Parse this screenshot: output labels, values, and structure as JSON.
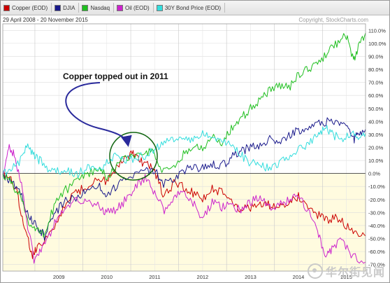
{
  "chart_data": {
    "type": "line",
    "date_range": "29 April 2008 - 20 November 2015",
    "copyright": "Copyright, StockCharts.com",
    "annotation": "Copper topped out in 2011",
    "x_tick_labels": [
      "2009",
      "2010",
      "2011",
      "2012",
      "2013",
      "2014",
      "2015"
    ],
    "y_tick_labels": [
      "110.0%",
      "100.0%",
      "90.0%",
      "80.0%",
      "70.0%",
      "60.0%",
      "50.0%",
      "40.0%",
      "30.0%",
      "20.0%",
      "10.0%",
      "0.0%",
      "-10.0%",
      "-20.0%",
      "-30.0%",
      "-40.0%",
      "-50.0%",
      "-60.0%",
      "-70.0%"
    ],
    "y_axis_range": [
      -75,
      115
    ],
    "x_axis_range": [
      2008.33,
      2015.9
    ],
    "grid": true,
    "legend_position": "top",
    "series": [
      {
        "name": "Copper (EOD)",
        "color": "#cc0000",
        "points": [
          [
            2008.33,
            0
          ],
          [
            2008.5,
            -4
          ],
          [
            2008.65,
            -18
          ],
          [
            2008.8,
            -45
          ],
          [
            2008.95,
            -62
          ],
          [
            2009.05,
            -58
          ],
          [
            2009.3,
            -48
          ],
          [
            2009.55,
            -30
          ],
          [
            2009.8,
            -15
          ],
          [
            2010.0,
            -12
          ],
          [
            2010.3,
            -5
          ],
          [
            2010.5,
            -6
          ],
          [
            2010.7,
            4
          ],
          [
            2010.9,
            12
          ],
          [
            2011.05,
            16
          ],
          [
            2011.2,
            10
          ],
          [
            2011.35,
            6
          ],
          [
            2011.5,
            2
          ],
          [
            2011.7,
            -18
          ],
          [
            2011.9,
            -8
          ],
          [
            2012.1,
            -10
          ],
          [
            2012.3,
            -15
          ],
          [
            2012.5,
            -20
          ],
          [
            2012.7,
            -12
          ],
          [
            2012.9,
            -14
          ],
          [
            2013.1,
            -20
          ],
          [
            2013.3,
            -28
          ],
          [
            2013.5,
            -26
          ],
          [
            2013.7,
            -22
          ],
          [
            2013.9,
            -24
          ],
          [
            2014.1,
            -26
          ],
          [
            2014.3,
            -22
          ],
          [
            2014.5,
            -18
          ],
          [
            2014.7,
            -24
          ],
          [
            2014.9,
            -32
          ],
          [
            2015.1,
            -36
          ],
          [
            2015.3,
            -34
          ],
          [
            2015.5,
            -40
          ],
          [
            2015.7,
            -44
          ],
          [
            2015.9,
            -48
          ]
        ]
      },
      {
        "name": "DJIA",
        "color": "#1a1a8c",
        "points": [
          [
            2008.33,
            0
          ],
          [
            2008.5,
            -6
          ],
          [
            2008.7,
            -15
          ],
          [
            2008.9,
            -35
          ],
          [
            2009.05,
            -40
          ],
          [
            2009.2,
            -48
          ],
          [
            2009.4,
            -32
          ],
          [
            2009.6,
            -22
          ],
          [
            2009.9,
            -18
          ],
          [
            2010.1,
            -13
          ],
          [
            2010.35,
            -10
          ],
          [
            2010.5,
            -16
          ],
          [
            2010.75,
            -8
          ],
          [
            2011.0,
            -2
          ],
          [
            2011.3,
            2
          ],
          [
            2011.5,
            3
          ],
          [
            2011.65,
            -8
          ],
          [
            2011.9,
            -3
          ],
          [
            2012.1,
            2
          ],
          [
            2012.3,
            5
          ],
          [
            2012.5,
            4
          ],
          [
            2012.7,
            8
          ],
          [
            2012.9,
            6
          ],
          [
            2013.1,
            12
          ],
          [
            2013.3,
            17
          ],
          [
            2013.5,
            20
          ],
          [
            2013.7,
            22
          ],
          [
            2013.9,
            27
          ],
          [
            2014.1,
            25
          ],
          [
            2014.3,
            29
          ],
          [
            2014.5,
            33
          ],
          [
            2014.7,
            34
          ],
          [
            2014.9,
            38
          ],
          [
            2015.1,
            40
          ],
          [
            2015.3,
            39
          ],
          [
            2015.5,
            38
          ],
          [
            2015.65,
            26
          ],
          [
            2015.75,
            30
          ],
          [
            2015.9,
            34
          ]
        ]
      },
      {
        "name": "Nasdaq",
        "color": "#1fbf1f",
        "points": [
          [
            2008.33,
            0
          ],
          [
            2008.5,
            -6
          ],
          [
            2008.7,
            -18
          ],
          [
            2008.9,
            -40
          ],
          [
            2009.05,
            -43
          ],
          [
            2009.2,
            -46
          ],
          [
            2009.4,
            -25
          ],
          [
            2009.6,
            -14
          ],
          [
            2009.9,
            -5
          ],
          [
            2010.1,
            0
          ],
          [
            2010.35,
            5
          ],
          [
            2010.5,
            -4
          ],
          [
            2010.75,
            8
          ],
          [
            2011.0,
            14
          ],
          [
            2011.3,
            18
          ],
          [
            2011.5,
            15
          ],
          [
            2011.65,
            0
          ],
          [
            2011.9,
            6
          ],
          [
            2012.1,
            15
          ],
          [
            2012.3,
            22
          ],
          [
            2012.5,
            20
          ],
          [
            2012.7,
            28
          ],
          [
            2012.9,
            24
          ],
          [
            2013.1,
            34
          ],
          [
            2013.3,
            42
          ],
          [
            2013.5,
            50
          ],
          [
            2013.7,
            56
          ],
          [
            2013.9,
            64
          ],
          [
            2014.1,
            68
          ],
          [
            2014.3,
            66
          ],
          [
            2014.5,
            76
          ],
          [
            2014.7,
            80
          ],
          [
            2014.9,
            86
          ],
          [
            2015.1,
            92
          ],
          [
            2015.3,
            100
          ],
          [
            2015.5,
            106
          ],
          [
            2015.65,
            86
          ],
          [
            2015.75,
            98
          ],
          [
            2015.9,
            108
          ]
        ]
      },
      {
        "name": "Oil (EOD)",
        "color": "#cc22cc",
        "points": [
          [
            2008.33,
            0
          ],
          [
            2008.45,
            20
          ],
          [
            2008.55,
            15
          ],
          [
            2008.7,
            -5
          ],
          [
            2008.85,
            -40
          ],
          [
            2008.98,
            -66
          ],
          [
            2009.1,
            -60
          ],
          [
            2009.3,
            -48
          ],
          [
            2009.5,
            -30
          ],
          [
            2009.7,
            -25
          ],
          [
            2009.9,
            -20
          ],
          [
            2010.1,
            -22
          ],
          [
            2010.35,
            -25
          ],
          [
            2010.5,
            -30
          ],
          [
            2010.7,
            -28
          ],
          [
            2010.9,
            -20
          ],
          [
            2011.1,
            -10
          ],
          [
            2011.3,
            -4
          ],
          [
            2011.5,
            -14
          ],
          [
            2011.7,
            -28
          ],
          [
            2011.9,
            -18
          ],
          [
            2012.1,
            -12
          ],
          [
            2012.3,
            -22
          ],
          [
            2012.5,
            -34
          ],
          [
            2012.7,
            -22
          ],
          [
            2012.9,
            -26
          ],
          [
            2013.1,
            -24
          ],
          [
            2013.3,
            -28
          ],
          [
            2013.5,
            -22
          ],
          [
            2013.7,
            -18
          ],
          [
            2013.9,
            -26
          ],
          [
            2014.1,
            -24
          ],
          [
            2014.3,
            -20
          ],
          [
            2014.5,
            -18
          ],
          [
            2014.7,
            -28
          ],
          [
            2014.9,
            -46
          ],
          [
            2015.05,
            -62
          ],
          [
            2015.2,
            -58
          ],
          [
            2015.4,
            -52
          ],
          [
            2015.6,
            -62
          ],
          [
            2015.9,
            -68
          ]
        ]
      },
      {
        "name": "30Y Bond Price (EOD)",
        "color": "#33dddd",
        "points": [
          [
            2008.33,
            0
          ],
          [
            2008.5,
            5
          ],
          [
            2008.7,
            10
          ],
          [
            2008.85,
            22
          ],
          [
            2008.98,
            15
          ],
          [
            2009.1,
            10
          ],
          [
            2009.3,
            2
          ],
          [
            2009.5,
            1
          ],
          [
            2009.7,
            2
          ],
          [
            2009.9,
            0
          ],
          [
            2010.1,
            4
          ],
          [
            2010.3,
            2
          ],
          [
            2010.5,
            8
          ],
          [
            2010.7,
            14
          ],
          [
            2010.9,
            10
          ],
          [
            2011.1,
            12
          ],
          [
            2011.3,
            14
          ],
          [
            2011.5,
            18
          ],
          [
            2011.7,
            24
          ],
          [
            2011.9,
            26
          ],
          [
            2012.1,
            24
          ],
          [
            2012.3,
            28
          ],
          [
            2012.5,
            30
          ],
          [
            2012.7,
            28
          ],
          [
            2012.9,
            26
          ],
          [
            2013.1,
            22
          ],
          [
            2013.3,
            14
          ],
          [
            2013.5,
            8
          ],
          [
            2013.7,
            6
          ],
          [
            2013.9,
            4
          ],
          [
            2014.1,
            8
          ],
          [
            2014.3,
            14
          ],
          [
            2014.5,
            18
          ],
          [
            2014.7,
            22
          ],
          [
            2014.9,
            30
          ],
          [
            2015.05,
            36
          ],
          [
            2015.2,
            30
          ],
          [
            2015.4,
            26
          ],
          [
            2015.6,
            30
          ],
          [
            2015.75,
            28
          ],
          [
            2015.9,
            31
          ]
        ]
      }
    ]
  }
}
